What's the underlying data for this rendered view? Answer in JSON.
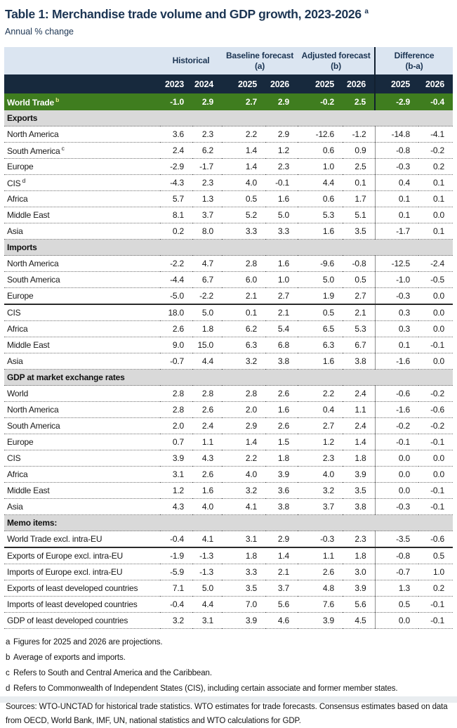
{
  "page": {
    "title": "Table 1: Merchandise trade volume and GDP growth, 2023-2026",
    "title_superscript": "a",
    "subtitle": "Annual % change"
  },
  "table": {
    "colors": {
      "group_band_bg": "#dbe5f1",
      "year_band_bg": "#17293d",
      "world_row_bg": "#3f7d1f",
      "section_row_bg": "#d9d9d9",
      "heading_text": "#1c3553"
    },
    "column_groups": [
      {
        "label": "Historical",
        "sub": ""
      },
      {
        "label": "Baseline forecast",
        "sub": "(a)"
      },
      {
        "label": "Adjusted forecast",
        "sub": "(b)"
      },
      {
        "label": "Difference",
        "sub": "(b-a)"
      }
    ],
    "year_headers": [
      "2023",
      "2024",
      "2025",
      "2026",
      "2025",
      "2026",
      "2025",
      "2026"
    ],
    "world_row": {
      "label": "World Trade",
      "sup": "b",
      "values": [
        "-1.0",
        "2.9",
        "2.7",
        "2.9",
        "-0.2",
        "2.5",
        "-2.9",
        "-0.4"
      ]
    },
    "sections": [
      {
        "header": "Exports",
        "rows": [
          {
            "label": "North America",
            "values": [
              "3.6",
              "2.3",
              "2.2",
              "2.9",
              "-12.6",
              "-1.2",
              "-14.8",
              "-4.1"
            ]
          },
          {
            "label": "South America",
            "sup": "c",
            "values": [
              "2.4",
              "6.2",
              "1.4",
              "1.2",
              "0.6",
              "0.9",
              "-0.8",
              "-0.2"
            ]
          },
          {
            "label": "Europe",
            "values": [
              "-2.9",
              "-1.7",
              "1.4",
              "2.3",
              "1.0",
              "2.5",
              "-0.3",
              "0.2"
            ]
          },
          {
            "label": "CIS",
            "sup": "d",
            "values": [
              "-4.3",
              "2.3",
              "4.0",
              "-0.1",
              "4.4",
              "0.1",
              "0.4",
              "0.1"
            ]
          },
          {
            "label": "Africa",
            "values": [
              "5.7",
              "1.3",
              "0.5",
              "1.6",
              "0.6",
              "1.7",
              "0.1",
              "0.1"
            ]
          },
          {
            "label": "Middle East",
            "values": [
              "8.1",
              "3.7",
              "5.2",
              "5.0",
              "5.3",
              "5.1",
              "0.1",
              "0.0"
            ]
          },
          {
            "label": "Asia",
            "values": [
              "0.2",
              "8.0",
              "3.3",
              "3.3",
              "1.6",
              "3.5",
              "-1.7",
              "0.1"
            ]
          }
        ]
      },
      {
        "header": "Imports",
        "rows": [
          {
            "label": "North America",
            "values": [
              "-2.2",
              "4.7",
              "2.8",
              "1.6",
              "-9.6",
              "-0.8",
              "-12.5",
              "-2.4"
            ]
          },
          {
            "label": "South America",
            "values": [
              "-4.4",
              "6.7",
              "6.0",
              "1.0",
              "5.0",
              "0.5",
              "-1.0",
              "-0.5"
            ]
          },
          {
            "label": "Europe",
            "heavy": true,
            "values": [
              "-5.0",
              "-2.2",
              "2.1",
              "2.7",
              "1.9",
              "2.7",
              "-0.3",
              "0.0"
            ]
          },
          {
            "label": "CIS",
            "values": [
              "18.0",
              "5.0",
              "0.1",
              "2.1",
              "0.5",
              "2.1",
              "0.3",
              "0.0"
            ]
          },
          {
            "label": "Africa",
            "values": [
              "2.6",
              "1.8",
              "6.2",
              "5.4",
              "6.5",
              "5.3",
              "0.3",
              "0.0"
            ]
          },
          {
            "label": "Middle East",
            "values": [
              "9.0",
              "15.0",
              "6.3",
              "6.8",
              "6.3",
              "6.7",
              "0.1",
              "-0.1"
            ]
          },
          {
            "label": "Asia",
            "values": [
              "-0.7",
              "4.4",
              "3.2",
              "3.8",
              "1.6",
              "3.8",
              "-1.6",
              "0.0"
            ]
          }
        ]
      },
      {
        "header": "GDP at market exchange rates",
        "rows": [
          {
            "label": "World",
            "values": [
              "2.8",
              "2.8",
              "2.8",
              "2.6",
              "2.2",
              "2.4",
              "-0.6",
              "-0.2"
            ]
          },
          {
            "label": "North America",
            "values": [
              "2.8",
              "2.6",
              "2.0",
              "1.6",
              "0.4",
              "1.1",
              "-1.6",
              "-0.6"
            ]
          },
          {
            "label": "South America",
            "values": [
              "2.0",
              "2.4",
              "2.9",
              "2.6",
              "2.7",
              "2.4",
              "-0.2",
              "-0.2"
            ]
          },
          {
            "label": "Europe",
            "values": [
              "0.7",
              "1.1",
              "1.4",
              "1.5",
              "1.2",
              "1.4",
              "-0.1",
              "-0.1"
            ]
          },
          {
            "label": "CIS",
            "values": [
              "3.9",
              "4.3",
              "2.2",
              "1.8",
              "2.3",
              "1.8",
              "0.0",
              "0.0"
            ]
          },
          {
            "label": "Africa",
            "values": [
              "3.1",
              "2.6",
              "4.0",
              "3.9",
              "4.0",
              "3.9",
              "0.0",
              "0.0"
            ]
          },
          {
            "label": "Middle East",
            "values": [
              "1.2",
              "1.6",
              "3.2",
              "3.6",
              "3.2",
              "3.5",
              "0.0",
              "-0.1"
            ]
          },
          {
            "label": "Asia",
            "values": [
              "4.3",
              "4.0",
              "4.1",
              "3.8",
              "3.7",
              "3.8",
              "-0.3",
              "-0.1"
            ]
          }
        ]
      },
      {
        "header": "Memo items:",
        "rows": [
          {
            "label": "World Trade excl. intra-EU",
            "heavy": true,
            "values": [
              "-0.4",
              "4.1",
              "3.1",
              "2.9",
              "-0.3",
              "2.3",
              "-3.5",
              "-0.6"
            ]
          },
          {
            "label": "Exports of Europe excl. intra-EU",
            "values": [
              "-1.9",
              "-1.3",
              "1.8",
              "1.4",
              "1.1",
              "1.8",
              "-0.8",
              "0.5"
            ]
          },
          {
            "label": "Imports of Europe excl. intra-EU",
            "values": [
              "-5.9",
              "-1.3",
              "3.3",
              "2.1",
              "2.6",
              "3.0",
              "-0.7",
              "1.0"
            ]
          },
          {
            "label": "Exports of least developed countries",
            "values": [
              "7.1",
              "5.0",
              "3.5",
              "3.7",
              "4.8",
              "3.9",
              "1.3",
              "0.2"
            ]
          },
          {
            "label": "Imports of least developed countries",
            "values": [
              "-0.4",
              "4.4",
              "7.0",
              "5.6",
              "7.6",
              "5.6",
              "0.5",
              "-0.1"
            ]
          },
          {
            "label": "GDP of least developed countries",
            "values": [
              "3.2",
              "3.1",
              "3.9",
              "4.6",
              "3.9",
              "4.5",
              "0.0",
              "-0.1"
            ]
          }
        ]
      }
    ]
  },
  "footnotes": [
    {
      "marker": "a",
      "text": "Figures for 2025 and 2026 are projections."
    },
    {
      "marker": "b",
      "text": "Average of exports and imports."
    },
    {
      "marker": "c",
      "text": "Refers to South and Central America and the Caribbean."
    },
    {
      "marker": "d",
      "text": "Refers to Commonwealth of Independent States (CIS), including certain associate and former member states."
    }
  ],
  "sources": {
    "text": "Sources: WTO-UNCTAD for historical trade statistics. WTO estimates for trade forecasts.  Consensus estimates based on data from OECD, World Bank, IMF, UN, national statistics and WTO calculations for GDP."
  }
}
